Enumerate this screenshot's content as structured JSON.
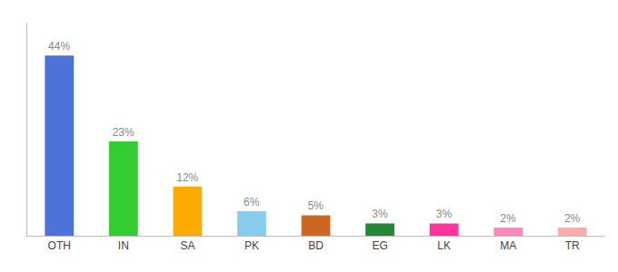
{
  "chart_data": {
    "type": "bar",
    "categories": [
      "OTH",
      "IN",
      "SA",
      "PK",
      "BD",
      "EG",
      "LK",
      "MA",
      "TR"
    ],
    "values": [
      44,
      23,
      12,
      6,
      5,
      3,
      3,
      2,
      2
    ],
    "value_labels": [
      "44%",
      "23%",
      "12%",
      "6%",
      "5%",
      "3%",
      "3%",
      "2%",
      "2%"
    ],
    "colors": [
      "#4d72d9",
      "#33cc33",
      "#ffaa00",
      "#88ccee",
      "#cc6622",
      "#228833",
      "#ff3399",
      "#ff88bb",
      "#ffaaaa"
    ],
    "ylim": [
      0,
      52
    ],
    "yticks": [],
    "grid": false,
    "data_labels": true,
    "tick_labels": "x"
  }
}
